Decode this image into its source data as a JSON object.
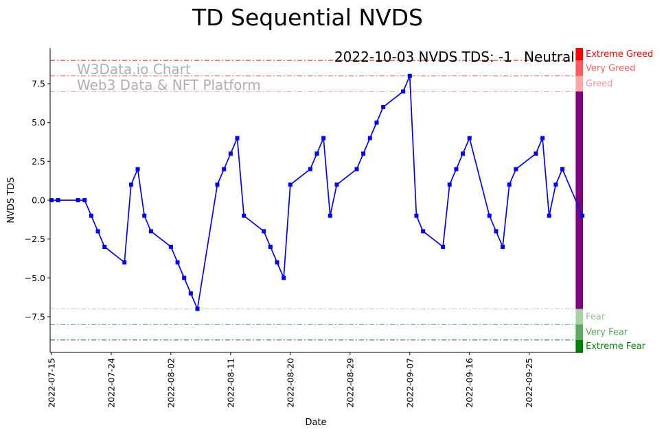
{
  "chart_data": {
    "type": "line",
    "title": "TD Sequential NVDS",
    "xlabel": "Date",
    "ylabel": "NVDS TDS",
    "ylim": [
      -9.8,
      9.8
    ],
    "xlim_days": [
      -0.2,
      80.1
    ],
    "x_start_date": "2022-07-15",
    "series_color": "#0000ff",
    "yticks": [
      -7.5,
      -5.0,
      -2.5,
      0.0,
      2.5,
      5.0,
      7.5
    ],
    "ytick_labels": [
      "−7.5",
      "−5.0",
      "−2.5",
      "0.0",
      "2.5",
      "5.0",
      "7.5"
    ],
    "xticks": [
      {
        "day": 0,
        "label": "2022-07-15"
      },
      {
        "day": 9,
        "label": "2022-07-24"
      },
      {
        "day": 18,
        "label": "2022-08-02"
      },
      {
        "day": 27,
        "label": "2022-08-11"
      },
      {
        "day": 36,
        "label": "2022-08-20"
      },
      {
        "day": 45,
        "label": "2022-08-29"
      },
      {
        "day": 54,
        "label": "2022-09-07"
      },
      {
        "day": 63,
        "label": "2022-09-16"
      },
      {
        "day": 72,
        "label": "2022-09-25"
      }
    ],
    "points": [
      {
        "day": 0,
        "value": 0
      },
      {
        "day": 1,
        "value": 0
      },
      {
        "day": 4,
        "value": 0
      },
      {
        "day": 5,
        "value": 0
      },
      {
        "day": 6,
        "value": -1
      },
      {
        "day": 7,
        "value": -2
      },
      {
        "day": 8,
        "value": -3
      },
      {
        "day": 11,
        "value": -4
      },
      {
        "day": 12,
        "value": 1
      },
      {
        "day": 13,
        "value": 2
      },
      {
        "day": 14,
        "value": -1
      },
      {
        "day": 15,
        "value": -2
      },
      {
        "day": 18,
        "value": -3
      },
      {
        "day": 19,
        "value": -4
      },
      {
        "day": 20,
        "value": -5
      },
      {
        "day": 21,
        "value": -6
      },
      {
        "day": 22,
        "value": -7
      },
      {
        "day": 25,
        "value": 1
      },
      {
        "day": 26,
        "value": 2
      },
      {
        "day": 27,
        "value": 3
      },
      {
        "day": 28,
        "value": 4
      },
      {
        "day": 29,
        "value": -1
      },
      {
        "day": 32,
        "value": -2
      },
      {
        "day": 33,
        "value": -3
      },
      {
        "day": 34,
        "value": -4
      },
      {
        "day": 35,
        "value": -5
      },
      {
        "day": 36,
        "value": 1
      },
      {
        "day": 39,
        "value": 2
      },
      {
        "day": 40,
        "value": 3
      },
      {
        "day": 41,
        "value": 4
      },
      {
        "day": 42,
        "value": -1
      },
      {
        "day": 43,
        "value": 1
      },
      {
        "day": 46,
        "value": 2
      },
      {
        "day": 47,
        "value": 3
      },
      {
        "day": 48,
        "value": 4
      },
      {
        "day": 49,
        "value": 5
      },
      {
        "day": 50,
        "value": 6
      },
      {
        "day": 53,
        "value": 7
      },
      {
        "day": 54,
        "value": 8
      },
      {
        "day": 55,
        "value": -1
      },
      {
        "day": 56,
        "value": -2
      },
      {
        "day": 59,
        "value": -3
      },
      {
        "day": 60,
        "value": 1
      },
      {
        "day": 61,
        "value": 2
      },
      {
        "day": 62,
        "value": 3
      },
      {
        "day": 63,
        "value": 4
      },
      {
        "day": 66,
        "value": -1
      },
      {
        "day": 67,
        "value": -2
      },
      {
        "day": 68,
        "value": -3
      },
      {
        "day": 69,
        "value": 1
      },
      {
        "day": 70,
        "value": 2
      },
      {
        "day": 73,
        "value": 3
      },
      {
        "day": 74,
        "value": 4
      },
      {
        "day": 75,
        "value": -1
      },
      {
        "day": 76,
        "value": 1
      },
      {
        "day": 77,
        "value": 2
      },
      {
        "day": 80,
        "value": -1
      }
    ],
    "threshold_lines": [
      {
        "value": 9,
        "color": "#ff0000",
        "opacity": 1.0
      },
      {
        "value": 8,
        "color": "#ff0000",
        "opacity": 0.65
      },
      {
        "value": 7,
        "color": "#ff0000",
        "opacity": 0.35
      },
      {
        "value": -7,
        "color": "#008000",
        "opacity": 0.35
      },
      {
        "value": -8,
        "color": "#008000",
        "opacity": 0.65
      },
      {
        "value": -9,
        "color": "#008000",
        "opacity": 1.0
      }
    ],
    "zones": [
      {
        "name": "extreme-greed",
        "label": "Extreme Greed",
        "from": 9,
        "to": 9.8,
        "color": "#ff0000",
        "opacity": 1.0
      },
      {
        "name": "very-greed",
        "label": "Very Greed",
        "from": 8,
        "to": 9,
        "color": "#ff0000",
        "opacity": 0.65
      },
      {
        "name": "greed",
        "label": "Greed",
        "from": 7,
        "to": 8,
        "color": "#ff0000",
        "opacity": 0.35
      },
      {
        "name": "neutral",
        "label": "",
        "from": -7,
        "to": 7,
        "color": "#800080",
        "opacity": 1.0
      },
      {
        "name": "fear",
        "label": "Fear",
        "from": -8,
        "to": -7,
        "color": "#008000",
        "opacity": 0.35
      },
      {
        "name": "very-fear",
        "label": "Very Fear",
        "from": -9,
        "to": -8,
        "color": "#008000",
        "opacity": 0.65
      },
      {
        "name": "extreme-fear",
        "label": "Extreme Fear",
        "from": -9.8,
        "to": -9,
        "color": "#008000",
        "opacity": 1.0
      }
    ],
    "annotation": {
      "text": "2022-10-03 NVDS TDS: -1",
      "status": "Neutral",
      "status_color": "#800080"
    },
    "watermark": [
      "W3Data.io Chart",
      "Web3 Data & NFT Platform"
    ]
  }
}
